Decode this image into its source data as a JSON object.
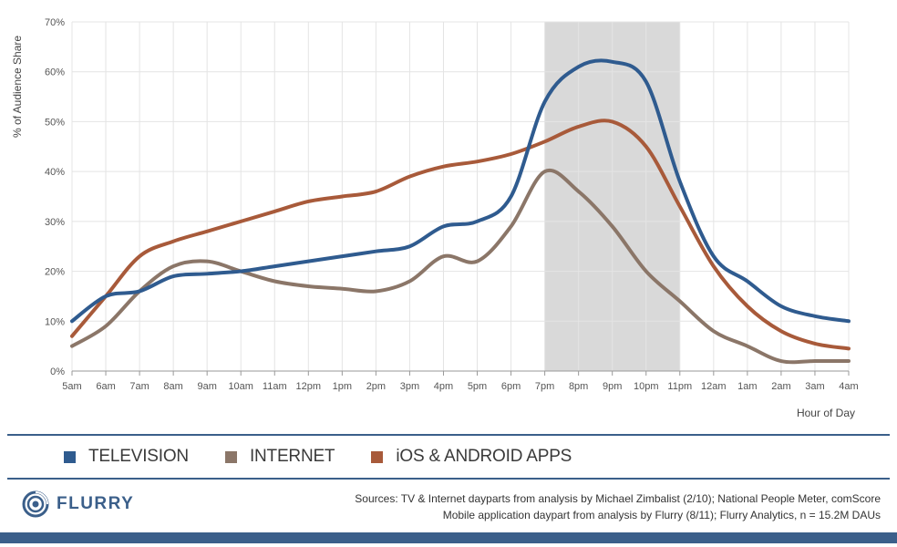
{
  "chart_data": {
    "type": "line",
    "xlabel": "Hour of Day",
    "ylabel": "% of Audience Share",
    "ylim": [
      0,
      70
    ],
    "yticks": [
      "0%",
      "10%",
      "20%",
      "30%",
      "40%",
      "50%",
      "60%",
      "70%"
    ],
    "categories": [
      "5am",
      "6am",
      "7am",
      "8am",
      "9am",
      "10am",
      "11am",
      "12pm",
      "1pm",
      "2pm",
      "3pm",
      "4pm",
      "5pm",
      "6pm",
      "7pm",
      "8pm",
      "9pm",
      "10pm",
      "11pm",
      "12am",
      "1am",
      "2am",
      "3am",
      "4am"
    ],
    "highlight": {
      "from": "7pm",
      "to": "11pm",
      "color": "#d9d9d9"
    },
    "grid": true,
    "series": [
      {
        "name": "TELEVISION",
        "color": "#2f5b8f",
        "values": [
          10,
          15,
          16,
          19,
          19.5,
          20,
          21,
          22,
          23,
          24,
          25,
          29,
          30,
          35,
          54,
          61,
          62,
          58,
          38,
          23,
          18,
          13,
          11,
          10
        ]
      },
      {
        "name": "INTERNET",
        "color": "#8b7668",
        "values": [
          5,
          9,
          16,
          21,
          22,
          20,
          18,
          17,
          16.5,
          16,
          18,
          23,
          22,
          29,
          40,
          36,
          29,
          20,
          14,
          8,
          5,
          2,
          2,
          2
        ]
      },
      {
        "name": "iOS & ANDROID APPS",
        "color": "#a85a3a",
        "values": [
          7,
          15,
          23,
          26,
          28,
          30,
          32,
          34,
          35,
          36,
          39,
          41,
          42,
          43.5,
          46,
          49,
          50,
          45,
          33,
          21,
          13,
          8,
          5.5,
          4.5
        ]
      }
    ]
  },
  "legend": [
    {
      "label": "TELEVISION",
      "color": "#2f5b8f"
    },
    {
      "label": "INTERNET",
      "color": "#8b7668"
    },
    {
      "label": "iOS & ANDROID APPS",
      "color": "#a85a3a"
    }
  ],
  "footer": {
    "logo_text": "FLURRY",
    "sources_line1": "Sources: TV & Internet dayparts from analysis by Michael Zimbalist (2/10); National People Meter, comScore",
    "sources_line2": "Mobile application daypart from analysis by Flurry (8/11); Flurry Analytics, n = 15.2M DAUs"
  },
  "colors": {
    "brand": "#3b5f8a",
    "grid": "#e4e4e4",
    "highlight": "#d9d9d9"
  }
}
